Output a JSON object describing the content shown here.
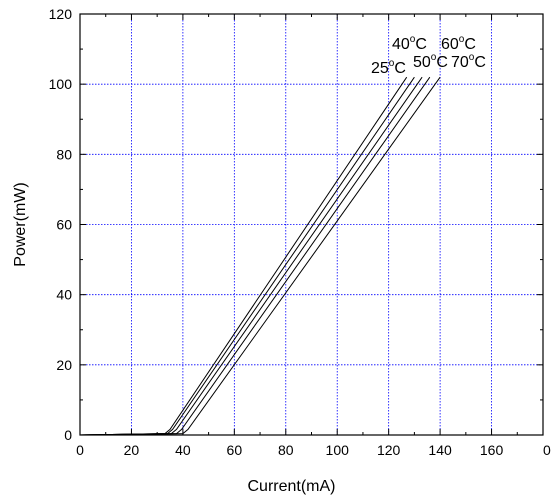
{
  "chart_data": {
    "type": "line",
    "xlabel": "Current(mA)",
    "ylabel": "Power(mW)",
    "xlim": [
      0,
      180
    ],
    "ylim": [
      0,
      120
    ],
    "x_ticks": [
      0,
      20,
      40,
      60,
      80,
      100,
      120,
      140,
      160
    ],
    "x_tick_labels": [
      "0",
      "20",
      "40",
      "60",
      "80",
      "100",
      "120",
      "140",
      "160"
    ],
    "x_edge_label": "0",
    "y_ticks": [
      0,
      20,
      40,
      60,
      80,
      100,
      120
    ],
    "y_tick_labels": [
      "0",
      "20",
      "40",
      "60",
      "80",
      "100",
      "120"
    ],
    "grid": true,
    "grid_color": "#0000ff",
    "line_color": "#000000",
    "series": [
      {
        "name": "25°C",
        "label_base": "25",
        "label_unit": "C",
        "x": [
          0,
          33,
          35,
          127
        ],
        "y": [
          0,
          0.4,
          1.6,
          102
        ]
      },
      {
        "name": "40°C",
        "label_base": "40",
        "label_unit": "C",
        "x": [
          0,
          34,
          36,
          130
        ],
        "y": [
          0,
          0.4,
          1.6,
          102
        ]
      },
      {
        "name": "50°C",
        "label_base": "50",
        "label_unit": "C",
        "x": [
          0,
          35.5,
          37.5,
          133
        ],
        "y": [
          0,
          0.4,
          1.6,
          102
        ]
      },
      {
        "name": "60°C",
        "label_base": "60",
        "label_unit": "C",
        "x": [
          0,
          37.5,
          39.5,
          136
        ],
        "y": [
          0,
          0.4,
          1.6,
          102
        ]
      },
      {
        "name": "70°C",
        "label_base": "70",
        "label_unit": "C",
        "x": [
          0,
          40,
          42,
          140
        ],
        "y": [
          0,
          0.4,
          1.6,
          102
        ]
      }
    ]
  }
}
